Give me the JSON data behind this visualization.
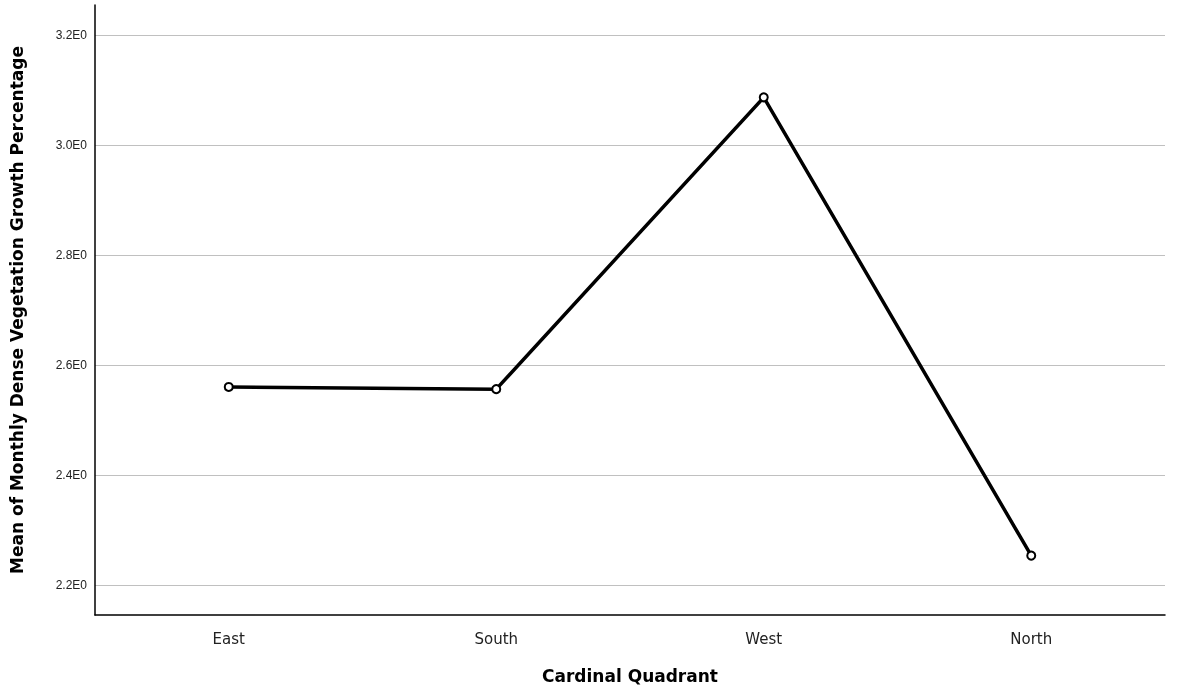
{
  "chart_data": {
    "type": "line",
    "xlabel": "Cardinal Quadrant",
    "ylabel": "Mean of Monthly Dense Vegetation Growth Percentage",
    "categories": [
      "East",
      "South",
      "West",
      "North"
    ],
    "series": [
      {
        "color": "#000000",
        "values": [
          2.56,
          2.556,
          3.087,
          2.253
        ]
      }
    ],
    "ylim": [
      2.145,
      3.255
    ],
    "yticks": [
      {
        "value": 2.2,
        "label": "2.2E0"
      },
      {
        "value": 2.4,
        "label": "2.4E0"
      },
      {
        "value": 2.6,
        "label": "2.6E0"
      },
      {
        "value": 2.8,
        "label": "2.8E0"
      },
      {
        "value": 3.0,
        "label": "3.0E0"
      },
      {
        "value": 3.2,
        "label": "3.2E0"
      }
    ],
    "grid": "y",
    "marker": "circle",
    "line_style": "solid"
  }
}
